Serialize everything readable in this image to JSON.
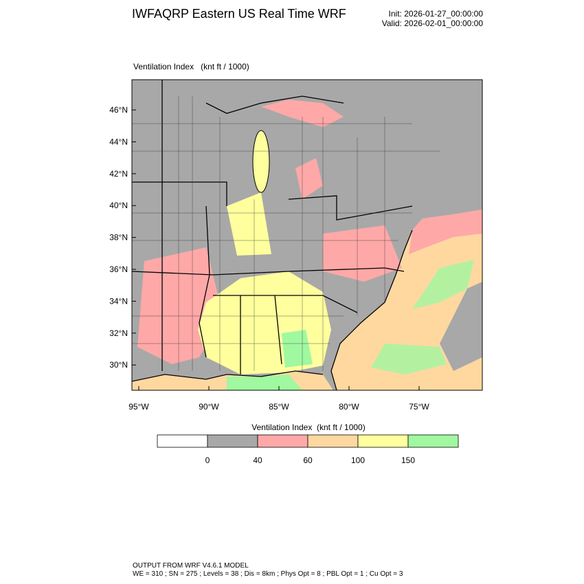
{
  "header": {
    "title": "IWFAQRP Eastern US Real Time WRF",
    "init": "Init: 2026-01-27_00:00:00",
    "valid": "Valid: 2026-02-01_00:00:00"
  },
  "map": {
    "field_label": "Ventilation Index   (knt ft / 1000)",
    "lat_labels": [
      "46°N",
      "44°N",
      "42°N",
      "40°N",
      "38°N",
      "36°N",
      "34°N",
      "32°N",
      "30°N"
    ],
    "lon_labels": [
      "95°W",
      "90°W",
      "85°W",
      "80°W",
      "75°W"
    ]
  },
  "colorbar": {
    "title": "Ventilation Index  (knt ft / 1000)",
    "colors": [
      "#ffffff",
      "#a8a8a8",
      "#ffa8a8",
      "#ffd8a0",
      "#ffff9e",
      "#a0f8a0"
    ],
    "ticks": [
      0,
      40,
      60,
      100,
      150
    ]
  },
  "footer": {
    "line1": "OUTPUT FROM WRF V4.6.1 MODEL",
    "line2": "WE = 310 ; SN = 275 ; Levels = 38 ; Dis = 8km ; Phys Opt = 8 ; PBL Opt = 1 ; Cu Opt = 3"
  }
}
